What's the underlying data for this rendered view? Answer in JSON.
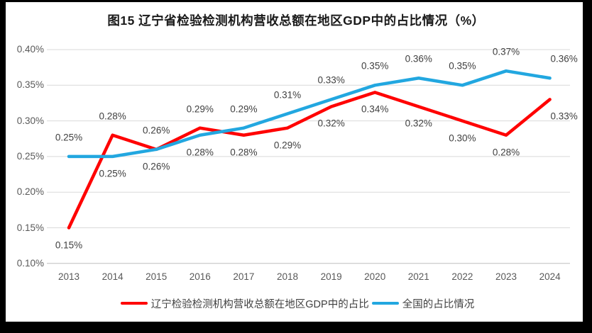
{
  "frame": {
    "outer_background": "#000000",
    "panel_background": "#ffffff"
  },
  "chart_data": {
    "type": "line",
    "title": "图15 辽宁省检验检测机构营收总额在地区GDP中的占比情况（%）",
    "categories": [
      "2013",
      "2014",
      "2015",
      "2016",
      "2017",
      "2018",
      "2019",
      "2020",
      "2021",
      "2022",
      "2023",
      "2024"
    ],
    "y_axis": {
      "tick_labels": [
        "0.40%",
        "0.35%",
        "0.30%",
        "0.25%",
        "0.20%",
        "0.15%",
        "0.10%"
      ],
      "tick_values": [
        0.4,
        0.35,
        0.3,
        0.25,
        0.2,
        0.15,
        0.1
      ],
      "min": 0.1,
      "max": 0.4,
      "unit": "%"
    },
    "grid": true,
    "grid_color": "#d9d9d9",
    "axis_line_color": "#bfbfbf",
    "tick_label_color": "#595959",
    "data_label_color": "#3f3f3f",
    "legend_position": "bottom",
    "series": [
      {
        "name": "辽宁检验检测机构营收总额在地区GDP中的占比",
        "color": "#ff0000",
        "values": [
          0.15,
          0.28,
          0.26,
          0.29,
          0.28,
          0.29,
          0.32,
          0.34,
          0.32,
          0.3,
          0.28,
          0.33
        ],
        "labels": [
          "0.15%",
          "0.28%",
          "0.26%",
          "0.29%",
          "0.28%",
          "0.29%",
          "0.32%",
          "0.34%",
          "0.32%",
          "0.30%",
          "0.28%",
          "0.33%"
        ],
        "label_side": [
          "below",
          "above",
          "above",
          "above",
          "below",
          "below",
          "below",
          "below",
          "below",
          "below",
          "below",
          "below"
        ]
      },
      {
        "name": "全国的占比情况",
        "color": "#22a7e0",
        "values": [
          0.25,
          0.25,
          0.26,
          0.28,
          0.29,
          0.31,
          0.33,
          0.35,
          0.36,
          0.35,
          0.37,
          0.36
        ],
        "labels": [
          "0.25%",
          "0.25%",
          "0.26%",
          "0.28%",
          "0.29%",
          "0.31%",
          "0.33%",
          "0.35%",
          "0.36%",
          "0.35%",
          "0.37%",
          "0.36%"
        ],
        "label_side": [
          "above",
          "below",
          "below",
          "below",
          "above",
          "above",
          "above",
          "above",
          "above",
          "above",
          "above",
          "above"
        ]
      }
    ]
  }
}
